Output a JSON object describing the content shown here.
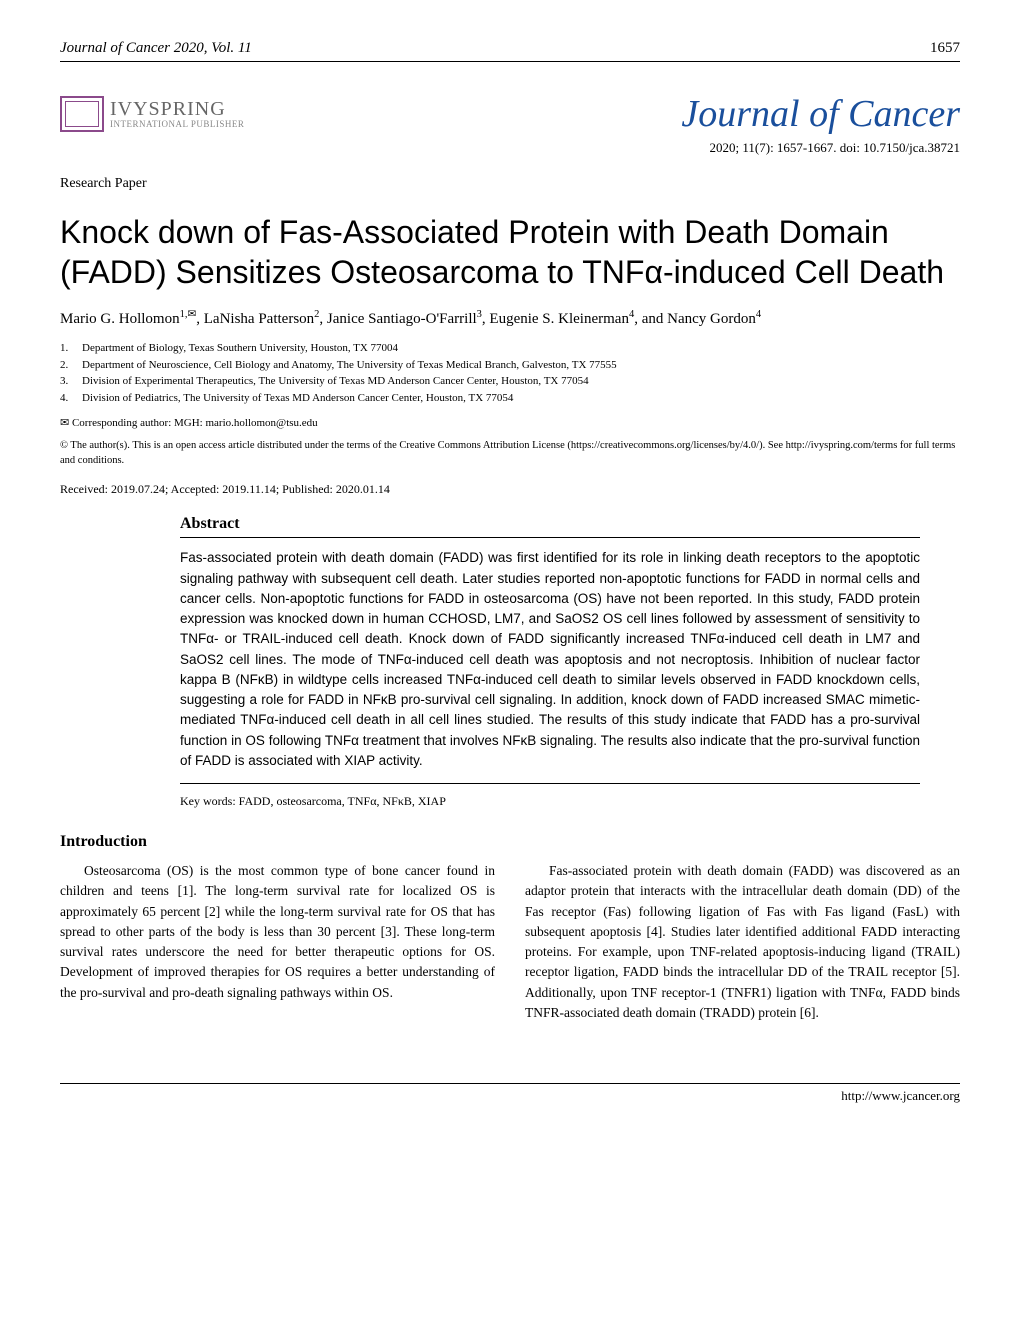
{
  "header": {
    "journal_line": "Journal of Cancer 2020, Vol. 11",
    "page_number": "1657"
  },
  "publisher": {
    "name": "IVYSPRING",
    "subtitle": "INTERNATIONAL PUBLISHER"
  },
  "journal": {
    "title": "Journal of Cancer",
    "title_color": "#1a4f9c",
    "pub_info": "2020; 11(7): 1657-1667. doi: 10.7150/jca.38721"
  },
  "paper_type": "Research Paper",
  "title": "Knock down of Fas-Associated Protein with Death Domain (FADD) Sensitizes Osteosarcoma to TNFα-induced Cell Death",
  "authors_html": "Mario G. Hollomon<sup>1,✉</sup>, LaNisha Patterson<sup>2</sup>, Janice Santiago-O'Farrill<sup>3</sup>, Eugenie S. Kleinerman<sup>4</sup>, and Nancy Gordon<sup>4</sup>",
  "affiliations": [
    {
      "num": "1.",
      "text": "Department of Biology, Texas Southern University, Houston, TX 77004"
    },
    {
      "num": "2.",
      "text": "Department of Neuroscience, Cell Biology and Anatomy, The University of Texas Medical Branch, Galveston, TX 77555"
    },
    {
      "num": "3.",
      "text": "Division of Experimental Therapeutics, The University of Texas MD Anderson Cancer Center, Houston, TX 77054"
    },
    {
      "num": "4.",
      "text": "Division of Pediatrics, The University of Texas MD Anderson Cancer Center, Houston, TX 77054"
    }
  ],
  "corresponding": "✉ Corresponding author: MGH: mario.hollomon@tsu.edu",
  "copyright": "© The author(s). This is an open access article distributed under the terms of the Creative Commons Attribution License (https://creativecommons.org/licenses/by/4.0/). See http://ivyspring.com/terms for full terms and conditions.",
  "dates": "Received: 2019.07.24; Accepted: 2019.11.14; Published: 2020.01.14",
  "abstract": {
    "heading": "Abstract",
    "text": "Fas-associated protein with death domain (FADD) was first identified for its role in linking death receptors to the apoptotic signaling pathway with subsequent cell death. Later studies reported non-apoptotic functions for FADD in normal cells and cancer cells. Non-apoptotic functions for FADD in osteosarcoma (OS) have not been reported. In this study, FADD protein expression was knocked down in human CCHOSD, LM7, and SaOS2 OS cell lines followed by assessment of sensitivity to TNFα- or TRAIL-induced cell death. Knock down of FADD significantly increased TNFα-induced cell death in LM7 and SaOS2 cell lines. The mode of TNFα-induced cell death was apoptosis and not necroptosis. Inhibition of nuclear factor kappa B (NFκB) in wildtype cells increased TNFα-induced cell death to similar levels observed in FADD knockdown cells, suggesting a role for FADD in NFκB pro-survival cell signaling. In addition, knock down of FADD increased SMAC mimetic-mediated TNFα-induced cell death in all cell lines studied. The results of this study indicate that FADD has a pro-survival function in OS following TNFα treatment that involves NFκB signaling. The results also indicate that the pro-survival function of FADD is associated with XIAP activity.",
    "keywords": "Key words: FADD, osteosarcoma, TNFα, NFκB, XIAP"
  },
  "introduction": {
    "heading": "Introduction",
    "col1": "Osteosarcoma (OS) is the most common type of bone cancer found in children and teens [1]. The long-term survival rate for localized OS is approximately 65 percent [2] while the long-term survival rate for OS that has spread to other parts of the body is less than 30 percent [3]. These long-term survival rates underscore the need for better therapeutic options for OS. Development of improved therapies for OS requires a better understanding of the pro-survival and pro-death signaling pathways within OS.",
    "col2": "Fas-associated protein with death domain (FADD) was discovered as an adaptor protein that interacts with the intracellular death domain (DD) of the Fas receptor (Fas) following ligation of Fas with Fas ligand (FasL) with subsequent apoptosis [4]. Studies later identified additional FADD interacting proteins. For example, upon TNF-related apoptosis-inducing ligand (TRAIL) receptor ligation, FADD binds the intracellular DD of the TRAIL receptor [5]. Additionally, upon TNF receptor-1 (TNFR1) ligation with TNFα, FADD binds TNFR-associated death domain (TRADD) protein [6]."
  },
  "footer": {
    "url": "http://www.jcancer.org"
  },
  "colors": {
    "text": "#000000",
    "journal_blue": "#1a4f9c",
    "logo_purple": "#8b4a8b",
    "publisher_gray": "#666666"
  },
  "fonts": {
    "body": "Georgia, Times New Roman, serif",
    "sans": "Gill Sans, Helvetica, sans-serif",
    "script": "Brush Script MT, cursive"
  }
}
